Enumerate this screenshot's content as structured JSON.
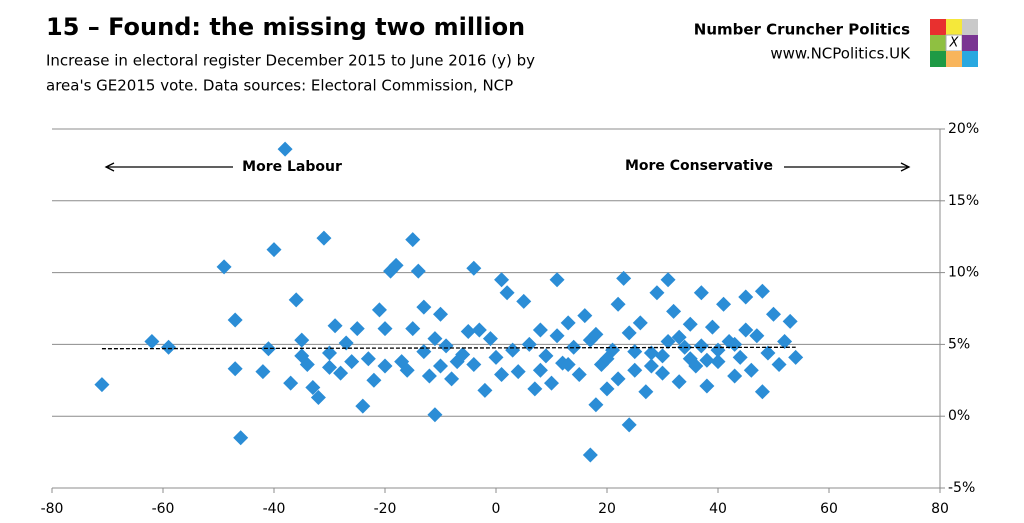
{
  "header": {
    "title": "15 – Found: the missing two million",
    "subtitle_lines": [
      "Increase in electoral register December 2015 to June 2016 (y) by",
      "area's GE2015 vote. Data sources: Electoral Commission, NCP"
    ],
    "brand": "Number Cruncher Politics",
    "url": "www.NCPolitics.UK",
    "logo_mark": "X"
  },
  "chart_data": {
    "type": "scatter",
    "annotations": [
      "More Labour",
      "More Conservative"
    ],
    "xlim": [
      -80,
      80
    ],
    "xticks": [
      -80,
      -60,
      -40,
      -20,
      0,
      20,
      40,
      60,
      80
    ],
    "ylim": [
      -5,
      20
    ],
    "yticks": [
      {
        "value": -5,
        "label": "-5%"
      },
      {
        "value": 0,
        "label": "0%"
      },
      {
        "value": 5,
        "label": "5%"
      },
      {
        "value": 10,
        "label": "10%"
      },
      {
        "value": 15,
        "label": "15%"
      },
      {
        "value": 20,
        "label": "20%"
      }
    ],
    "grid": true,
    "color": "#2b8dd6",
    "x": [
      -38,
      -71,
      -62,
      -59,
      -49,
      -47,
      -47,
      -46,
      -40,
      -41,
      -42,
      -36,
      -37,
      -35,
      -34,
      -33,
      -32,
      -31,
      -30,
      -29,
      -28,
      -27,
      -26,
      -25,
      -24,
      -23,
      -22,
      -21,
      -20,
      -19,
      -18,
      -17,
      -16,
      -15,
      -15,
      -14,
      -13,
      -13,
      -12,
      -11,
      -11,
      -10,
      -10,
      -9,
      -8,
      -7,
      -6,
      -5,
      -4,
      -4,
      -3,
      -2,
      -1,
      0,
      1,
      1,
      2,
      3,
      4,
      5,
      6,
      7,
      8,
      9,
      10,
      11,
      11,
      12,
      13,
      14,
      15,
      16,
      17,
      17,
      18,
      19,
      20,
      21,
      22,
      22,
      23,
      24,
      24,
      25,
      26,
      27,
      28,
      29,
      30,
      31,
      31,
      32,
      33,
      34,
      35,
      36,
      37,
      37,
      38,
      39,
      40,
      41,
      42,
      43,
      44,
      45,
      45,
      46,
      47,
      48,
      48,
      49,
      50,
      51,
      52,
      53,
      54,
      20,
      25,
      30,
      35,
      40,
      28,
      33,
      38,
      43,
      18,
      13,
      8,
      -20,
      -30,
      -35
    ],
    "values": [
      18.6,
      2.2,
      5.2,
      4.8,
      10.4,
      6.7,
      3.3,
      -1.5,
      11.6,
      4.7,
      3.1,
      8.1,
      2.3,
      5.3,
      3.6,
      2.0,
      1.3,
      12.4,
      4.4,
      6.3,
      3.0,
      5.1,
      3.8,
      6.1,
      0.7,
      4.0,
      2.5,
      7.4,
      6.1,
      10.1,
      10.5,
      3.8,
      3.2,
      12.3,
      6.1,
      10.1,
      7.6,
      4.5,
      2.8,
      0.1,
      5.4,
      7.1,
      3.5,
      4.9,
      2.6,
      3.8,
      4.3,
      5.9,
      10.3,
      3.6,
      6.0,
      1.8,
      5.4,
      4.1,
      9.5,
      2.9,
      8.6,
      4.6,
      3.1,
      8.0,
      5.0,
      1.9,
      6.0,
      4.2,
      2.3,
      9.5,
      5.6,
      3.7,
      6.5,
      4.8,
      2.9,
      7.0,
      -2.7,
      5.3,
      0.8,
      3.6,
      1.9,
      4.6,
      7.8,
      2.6,
      9.6,
      -0.6,
      5.8,
      3.2,
      6.5,
      1.7,
      4.4,
      8.6,
      3.0,
      9.5,
      5.2,
      7.3,
      2.4,
      4.8,
      6.4,
      3.5,
      8.6,
      4.9,
      2.1,
      6.2,
      3.8,
      7.8,
      5.2,
      2.8,
      4.1,
      8.3,
      6.0,
      3.2,
      5.6,
      8.7,
      1.7,
      4.4,
      7.1,
      3.6,
      5.2,
      6.6,
      4.1,
      4.0,
      4.5,
      4.2,
      4.0,
      4.6,
      3.5,
      5.5,
      3.9,
      5.0,
      5.7,
      3.6,
      3.2,
      3.5,
      3.4,
      4.2
    ],
    "trend": {
      "x": [
        -71,
        54
      ],
      "values": [
        4.7,
        4.8
      ]
    }
  }
}
